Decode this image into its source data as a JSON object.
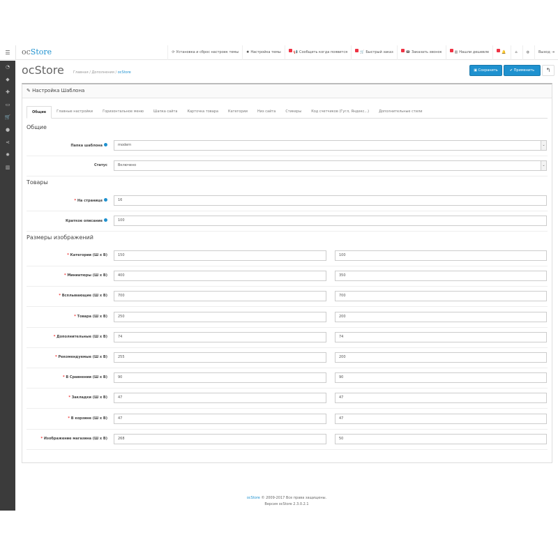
{
  "topbar": {
    "logo_a": "oc",
    "logo_b": "Store",
    "items": [
      {
        "label": "Установка и сброс настроек темы",
        "icon": "refresh-icon",
        "badge": false
      },
      {
        "label": "Настройка темы",
        "icon": "gear-icon",
        "badge": false
      },
      {
        "label": "Сообщить когда появится",
        "icon": "bullhorn-icon",
        "badge": true
      },
      {
        "label": "Быстрый заказ",
        "icon": "cart-icon",
        "badge": true
      },
      {
        "label": "Заказать звонок",
        "icon": "phone-icon",
        "badge": true
      },
      {
        "label": "Нашли дешевле",
        "icon": "chart-icon",
        "badge": true
      },
      {
        "label": "",
        "icon": "bell-icon",
        "badge": true
      },
      {
        "label": "",
        "icon": "home-icon",
        "badge": false
      },
      {
        "label": "",
        "icon": "globe-icon",
        "badge": false
      },
      {
        "label": "Выход",
        "icon": "sign-out-icon",
        "badge": false
      }
    ]
  },
  "sidebar": [
    "dashboard-icon",
    "tags-icon",
    "puzzle-icon",
    "desktop-icon",
    "cart-icon",
    "user-icon",
    "share-icon",
    "cog-icon",
    "bar-chart-icon"
  ],
  "page": {
    "title": "ocStore",
    "breadcrumb": [
      "Главная",
      "Дополнения",
      "ocStore"
    ],
    "save": "Сохранить",
    "apply": "Применить"
  },
  "panel": {
    "title": "Настройка Шаблона"
  },
  "tabs": [
    "Общие",
    "Главные настройки",
    "Горизонтальное меню",
    "Шапка сайта",
    "Карточка товара",
    "Категории",
    "Низ сайта",
    "Стикеры",
    "Код счетчиков (Гугл, Яндекс...)",
    "Дополнительные стили"
  ],
  "sections": {
    "general": "Общие",
    "products": "Товары",
    "images": "Размеры изображений"
  },
  "general": [
    {
      "label": "Папка шаблона",
      "value": "modern"
    },
    {
      "label": "Статус",
      "value": "Включено"
    }
  ],
  "products": [
    {
      "label": "На странице",
      "value": "16"
    },
    {
      "label": "Краткое описание",
      "value": "100"
    }
  ],
  "images": [
    {
      "label": "Категории (Ш х В)",
      "w": "150",
      "h": "100"
    },
    {
      "label": "Миниатюры (Ш х В)",
      "w": "400",
      "h": "350"
    },
    {
      "label": "Всплывающие (Ш х В)",
      "w": "700",
      "h": "700"
    },
    {
      "label": "Товара (Ш х В)",
      "w": "250",
      "h": "200"
    },
    {
      "label": "Дополнительные (Ш х В)",
      "w": "74",
      "h": "74"
    },
    {
      "label": "Рекомендуемые (Ш х В)",
      "w": "255",
      "h": "200"
    },
    {
      "label": "В Сравнении (Ш х В)",
      "w": "90",
      "h": "90"
    },
    {
      "label": "Закладки (Ш х В)",
      "w": "47",
      "h": "47"
    },
    {
      "label": "В корзине (Ш х В)",
      "w": "47",
      "h": "47"
    },
    {
      "label": "Изображение магазина (Ш х В)",
      "w": "268",
      "h": "50"
    }
  ],
  "footer": {
    "link": "ocStore",
    "copy": " © 2009-2017 Все права защищены.",
    "version": "Версия ocStore 2.3.0.2.1"
  }
}
